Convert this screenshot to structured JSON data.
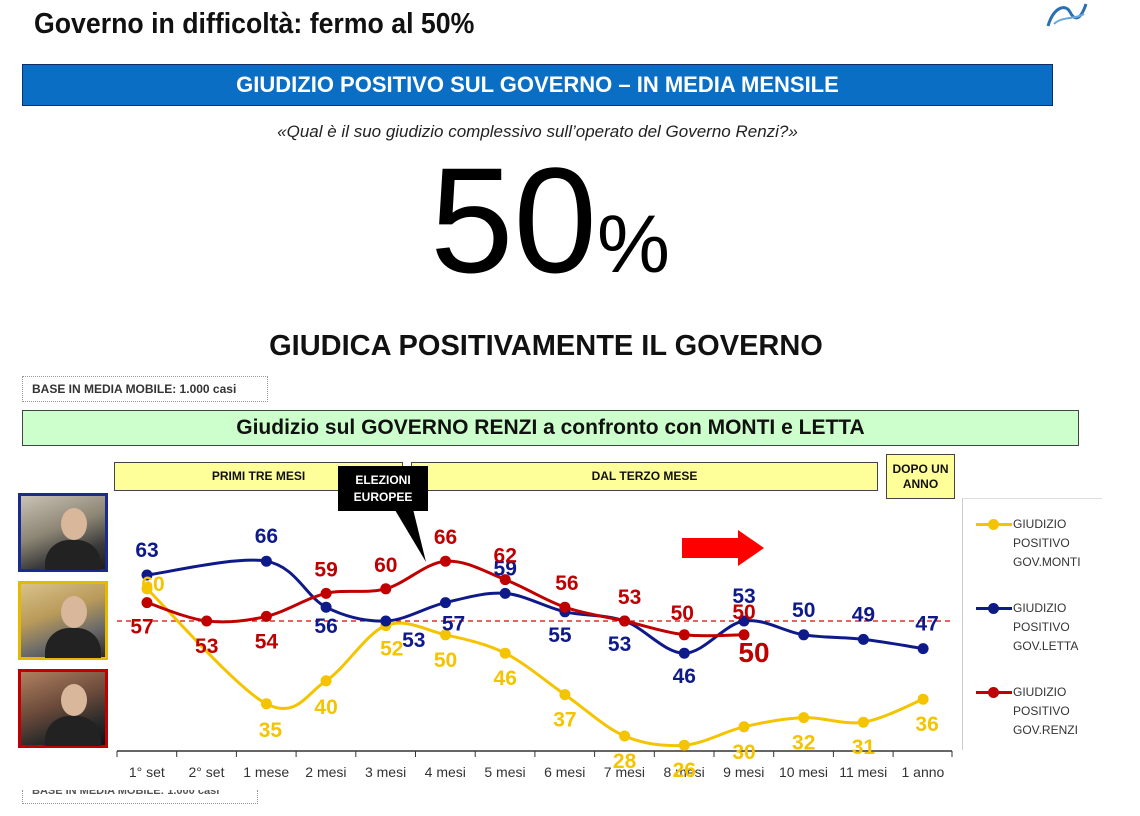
{
  "header": {
    "title": "Governo in difficoltà: fermo al 50%",
    "banner": "GIUDIZIO POSITIVO SUL GOVERNO – IN MEDIA MENSILE",
    "question": "«Qual è il suo giudizio complessivo sull’operato del Governo Renzi?»",
    "big_number": "50",
    "big_suffix": "%",
    "sub_heading": "GIUDICA POSITIVAMENTE IL GOVERNO"
  },
  "notes": {
    "base": "BASE IN MEDIA MOBILE: 1.000 casi",
    "base_bottom": "BASE IN MEDIA MOBILE: 1.000 casi"
  },
  "comparison_banner": "Giudizio sul GOVERNO RENZI a confronto con MONTI e LETTA",
  "periods": {
    "first": "PRIMI TRE MESI",
    "third": "DAL TERZO MESE",
    "after": "DOPO UN ANNO",
    "event": "ELEZIONI EUROPEE"
  },
  "photos": [
    "photo-letta",
    "photo-monti",
    "photo-renzi"
  ],
  "icons": {
    "logo": "logo-swirl-icon",
    "arrow": "red-arrow-icon"
  },
  "colors": {
    "monti": "#f5c400",
    "letta": "#0f1a8a",
    "renzi": "#c00000",
    "reference": "#e00000",
    "banner_blue": "#0a6fc4",
    "banner_green": "#ccffcc",
    "period_yellow": "#ffff99"
  },
  "chart_data": {
    "type": "line",
    "categories": [
      "1° set",
      "2° set",
      "1 mese",
      "2 mesi",
      "3 mesi",
      "4 mesi",
      "5 mesi",
      "6 mesi",
      "7 mesi",
      "8 mesi",
      "9 mesi",
      "10 mesi",
      "11 mesi",
      "1 anno"
    ],
    "series": [
      {
        "name": "GIUDIZIO POSITIVO GOV.MONTI",
        "color": "#f5c400",
        "values": [
          60,
          null,
          35,
          40,
          52,
          50,
          46,
          37,
          28,
          26,
          30,
          32,
          31,
          36
        ]
      },
      {
        "name": "GIUDIZIO POSITIVO GOV.LETTA",
        "color": "#0f1a8a",
        "values": [
          63,
          null,
          66,
          56,
          53,
          57,
          59,
          55,
          53,
          46,
          53,
          50,
          49,
          47
        ]
      },
      {
        "name": "GIUDIZIO POSITIVO GOV.RENZI",
        "color": "#c00000",
        "values": [
          57,
          53,
          54,
          59,
          60,
          66,
          62,
          56,
          53,
          50,
          50,
          null,
          null,
          null
        ]
      }
    ],
    "reference_line": 53,
    "highlight": {
      "category": "9 mesi",
      "value": "50"
    },
    "grid": false,
    "legend_position": "right"
  }
}
